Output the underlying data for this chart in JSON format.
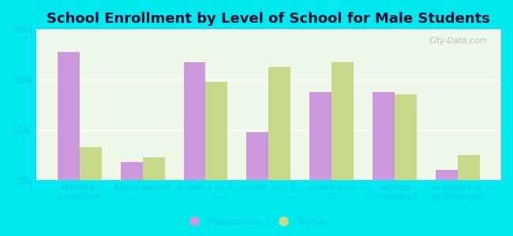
{
  "title": "School Enrollment by Level of School for Male Students",
  "categories": [
    "Nursery,\npreschool",
    "Kindergarten",
    "Grade 1 to 4",
    "Grade 5 to 8",
    "Grade 9 to\n12",
    "College\nundergrad",
    "Graduate or\nprofessional"
  ],
  "pecatonica": [
    25.5,
    3.5,
    23.5,
    9.5,
    17.5,
    17.5,
    2.0
  ],
  "illinois": [
    6.5,
    4.5,
    19.5,
    22.5,
    23.5,
    17.0,
    5.0
  ],
  "pecatonica_color": "#cc99dd",
  "illinois_color": "#c8d88a",
  "background_outer": "#00e8f0",
  "background_inner": "#eef8e8",
  "title_fontsize": 13,
  "title_color": "#111133",
  "ylim": [
    0,
    30
  ],
  "yticks": [
    0,
    10,
    20,
    30
  ],
  "ytick_labels": [
    "0%",
    "10%",
    "20%",
    "30%"
  ],
  "tick_label_color": "#00ccdd",
  "legend_label_pec": "Pecatonica",
  "legend_label_il": "Illinois",
  "watermark": "City-Data.com"
}
